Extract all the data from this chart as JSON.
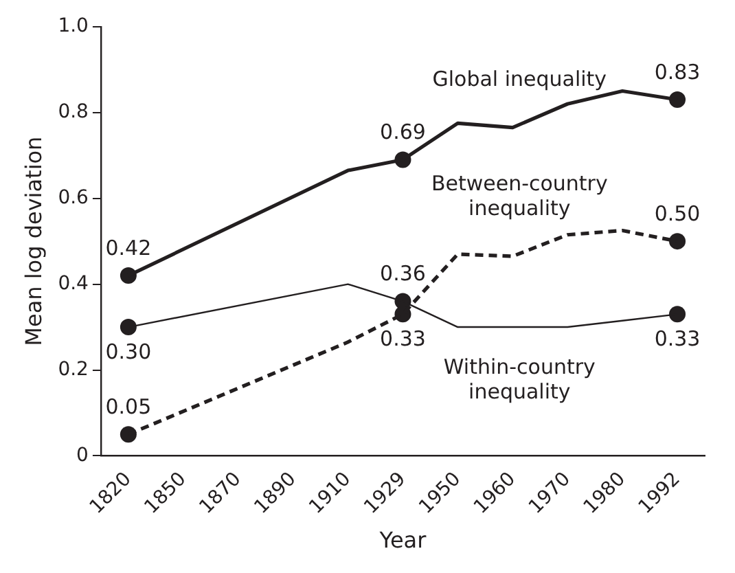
{
  "chart_data": {
    "type": "line",
    "xlabel": "Year",
    "ylabel": "Mean log deviation",
    "categories": [
      "1820",
      "1850",
      "1870",
      "1890",
      "1910",
      "1929",
      "1950",
      "1960",
      "1970",
      "1980",
      "1992"
    ],
    "ylim": [
      0,
      1.0
    ],
    "yticks": [
      0,
      0.2,
      0.4,
      0.6,
      0.8,
      {
        "value": 1.0,
        "label": "1.0"
      }
    ],
    "grid": false,
    "legend": false,
    "series": [
      {
        "name": "Global inequality",
        "color": "#231f20",
        "line_style": "solid",
        "marker": "none",
        "values": [
          0.42,
          null,
          null,
          null,
          0.665,
          0.69,
          0.775,
          0.765,
          0.82,
          0.85,
          0.83
        ]
      },
      {
        "name": "Between-country inequality",
        "color": "#231f20",
        "line_style": "dashed",
        "marker": "none",
        "values": [
          0.05,
          null,
          null,
          null,
          0.265,
          0.33,
          0.47,
          0.465,
          0.515,
          0.525,
          0.5
        ]
      },
      {
        "name": "Within-country inequality",
        "color": "#231f20",
        "line_style": "solid",
        "marker": "none",
        "values": [
          0.3,
          null,
          null,
          null,
          0.4,
          0.36,
          0.3,
          0.3,
          0.3,
          0.315,
          0.33
        ]
      },
      {
        "type": "scatter",
        "color": "#231f20",
        "marker": "circle",
        "values": [
          0.42,
          null,
          null,
          null,
          null,
          0.69,
          null,
          null,
          null,
          null,
          0.83
        ],
        "value_labels": [
          "0.42",
          null,
          null,
          null,
          null,
          "0.69",
          null,
          null,
          null,
          null,
          "0.83"
        ]
      },
      {
        "type": "scatter",
        "color": "#231f20",
        "marker": "circle",
        "values": [
          0.05,
          null,
          null,
          null,
          null,
          0.33,
          null,
          null,
          null,
          null,
          0.5
        ],
        "value_labels": [
          "0.05",
          null,
          null,
          null,
          null,
          "0.33",
          null,
          null,
          null,
          null,
          "0.50"
        ]
      },
      {
        "type": "scatter",
        "color": "#231f20",
        "marker": "circle",
        "values": [
          0.3,
          null,
          null,
          null,
          null,
          0.36,
          null,
          null,
          null,
          null,
          0.33
        ],
        "value_labels": [
          "0.30",
          null,
          null,
          null,
          null,
          "0.36",
          null,
          null,
          null,
          null,
          "0.33"
        ]
      }
    ]
  }
}
